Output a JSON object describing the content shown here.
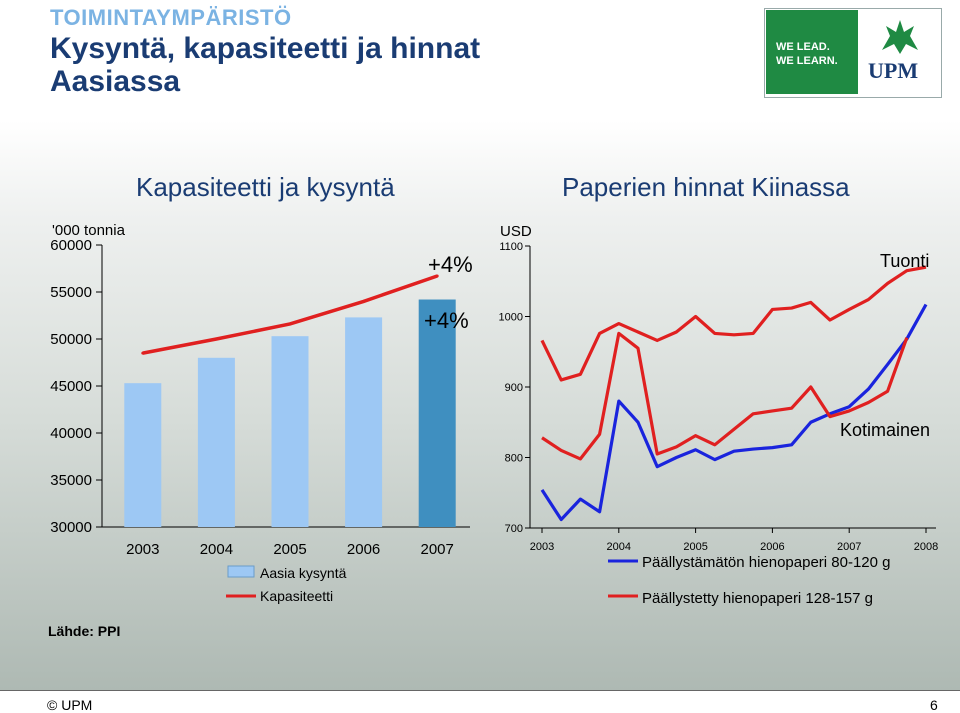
{
  "header": {
    "section_label": "TOIMINTAYMPÄRISTÖ",
    "title": "Kysyntä, kapasiteetti ja hinnat Aasiassa",
    "logo_text_line1": "WE LEAD.",
    "logo_text_line2": "WE LEARN.",
    "logo_brand": "UPM"
  },
  "footer": {
    "source": "Lähde: PPI",
    "copyright": "© UPM",
    "page_number": "6"
  },
  "colors": {
    "bar": "#9dc8f4",
    "bar_highlight": "#3f8fc0",
    "red": "#e02020",
    "blue": "#1a24dd",
    "title_blue": "#1a3c73"
  },
  "chart_data": [
    {
      "type": "bar",
      "title": "Kapasiteetti ja kysyntä",
      "ylabel": "'000 tonnia",
      "ylim": [
        30000,
        60000
      ],
      "yticks": [
        "60000",
        "55000",
        "50000",
        "45000",
        "40000",
        "35000",
        "30000"
      ],
      "categories": [
        "2003",
        "2004",
        "2005",
        "2006",
        "2007"
      ],
      "series": [
        {
          "name": "Aasia kysyntä",
          "kind": "bar",
          "values": [
            45300,
            48000,
            50300,
            52300,
            54200
          ]
        },
        {
          "name": "Kapasiteetti",
          "kind": "line",
          "values": [
            48500,
            50000,
            51600,
            54000,
            56700
          ]
        }
      ],
      "annotations": [
        "+4%",
        "+4%"
      ]
    },
    {
      "type": "line",
      "title": "Paperien hinnat Kiinassa",
      "ylabel": "USD",
      "ylim": [
        700,
        1100
      ],
      "yticks": [
        "1100",
        "1000",
        "900",
        "800",
        "700"
      ],
      "xticks": [
        "2003",
        "2004",
        "2005",
        "2006",
        "2007",
        "2008"
      ],
      "x": [
        2003.0,
        2003.25,
        2003.5,
        2003.75,
        2004.0,
        2004.25,
        2004.5,
        2004.75,
        2005.0,
        2005.25,
        2005.5,
        2005.75,
        2006.0,
        2006.25,
        2006.5,
        2006.75,
        2007.0,
        2007.25,
        2007.5,
        2007.75,
        2008.0
      ],
      "series": [
        {
          "name": "Päällystämätön hienopaperi 80-120 g (Tuonti)",
          "color": "#1a24dd",
          "values": [
            754,
            712,
            741,
            723,
            880,
            850,
            787,
            800,
            811,
            797,
            809,
            812,
            814,
            818,
            850,
            862,
            872,
            897,
            932,
            968,
            1017
          ]
        },
        {
          "name": "Päällystämätön hienopaperi 80-120 g (Kotimainen)",
          "color": "#1a24dd",
          "values": [
            null,
            null,
            null,
            null,
            null,
            null,
            null,
            null,
            null,
            null,
            null,
            null,
            null,
            null,
            null,
            null,
            null,
            null,
            null,
            null,
            null
          ]
        },
        {
          "name": "Päällystetty hienopaperi 128-157 g (Tuonti)",
          "color": "#e02020",
          "values": [
            966,
            910,
            918,
            976,
            990,
            978,
            966,
            978,
            1000,
            976,
            974,
            976,
            1010,
            1012,
            1020,
            995,
            1010,
            1024,
            1047,
            1065,
            1070
          ]
        },
        {
          "name": "Päällystetty hienopaperi 128-157 g (Kotimainen)",
          "color": "#e02020",
          "values": [
            828,
            810,
            798,
            833,
            976,
            955,
            805,
            815,
            831,
            818,
            840,
            862,
            866,
            870,
            900,
            858,
            866,
            878,
            894,
            970,
            null
          ]
        }
      ],
      "annotations": [
        "Tuonti",
        "Kotimainen"
      ],
      "legend": [
        {
          "label": "Päällystämätön hienopaperi 80-120 g",
          "color": "#1a24dd"
        },
        {
          "label": "Päällystetty hienopaperi 128-157 g",
          "color": "#e02020"
        }
      ]
    }
  ]
}
